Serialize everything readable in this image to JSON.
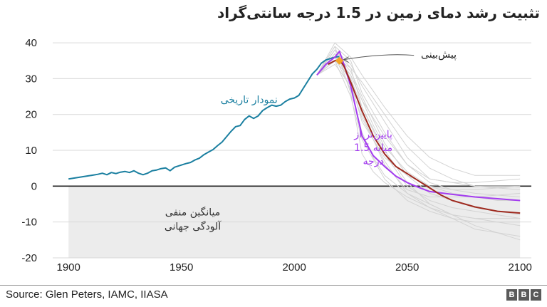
{
  "title": "تثبیت رشد دمای زمین در 1.5 درجه سانتی‌گراد",
  "source": "Source:  Glen Peters, IAMC, IIASA",
  "logo": [
    "B",
    "B",
    "C"
  ],
  "colors": {
    "historical": "#1a7fa0",
    "forecast_marker": "#f5a623",
    "below_15": "#a43cf0",
    "central": "#9e2a1f",
    "scenarios": "#d3d3d3",
    "negative_region": "#ececec",
    "grid": "#d9d9d9",
    "zero_line": "#222222"
  },
  "chart_data": {
    "type": "line",
    "title": "تثبیت رشد دمای زمین در 1.5 درجه سانتی‌گراد",
    "xlim": [
      1893,
      2105
    ],
    "ylim": [
      -20,
      42
    ],
    "x_ticks": [
      1900,
      1950,
      2000,
      2050,
      2100
    ],
    "x_tick_labels": [
      "1900",
      "1950",
      "2000",
      "2050",
      "2100"
    ],
    "y_ticks": [
      -20,
      -10,
      0,
      10,
      20,
      30,
      40
    ],
    "y_tick_labels": [
      "-20",
      "-10",
      "0",
      "10",
      "20",
      "30",
      "40"
    ],
    "grid": true,
    "negative_region": {
      "x": [
        1900,
        2100
      ],
      "y": [
        -20,
        0
      ]
    },
    "annotations": {
      "historical": "نمودار تاریخی",
      "forecast": "پیش‌بینی",
      "below_15": [
        "پایین‌تر از",
        "میانه 1.5",
        "درجه"
      ],
      "negative": [
        "میانگین منفی",
        "آلودگی جهانی"
      ]
    },
    "series": [
      {
        "key": "historical",
        "x": [
          1900,
          1903,
          1906,
          1909,
          1911,
          1913,
          1915,
          1917,
          1919,
          1921,
          1923,
          1925,
          1927,
          1929,
          1931,
          1933,
          1935,
          1937,
          1939,
          1941,
          1943,
          1945,
          1947,
          1950,
          1952,
          1954,
          1956,
          1958,
          1960,
          1962,
          1964,
          1966,
          1968,
          1970,
          1972,
          1974,
          1976,
          1978,
          1980,
          1982,
          1984,
          1986,
          1988,
          1990,
          1992,
          1994,
          1996,
          1998,
          2000,
          2002,
          2004,
          2006,
          2008,
          2010,
          2012,
          2014,
          2016,
          2018,
          2020
        ],
        "y": [
          2,
          2.3,
          2.6,
          2.9,
          3.1,
          3.3,
          3.6,
          3.2,
          3.8,
          3.5,
          3.9,
          4.1,
          3.8,
          4.3,
          3.6,
          3.2,
          3.6,
          4.3,
          4.5,
          4.9,
          5.1,
          4.3,
          5.3,
          5.9,
          6.3,
          6.6,
          7.3,
          7.8,
          8.8,
          9.5,
          10.2,
          11.3,
          12.3,
          13.8,
          15.3,
          16.6,
          16.9,
          18.6,
          19.6,
          18.9,
          19.6,
          21.1,
          21.9,
          22.6,
          22.3,
          22.6,
          23.6,
          24.3,
          24.6,
          25.3,
          27.3,
          29.3,
          31.3,
          32.6,
          34.3,
          35.2,
          35.6,
          36,
          36.2
        ]
      },
      {
        "key": "below_15",
        "x": [
          2010,
          2014,
          2018,
          2020,
          2022,
          2025,
          2030,
          2035,
          2040,
          2045,
          2050,
          2055,
          2060,
          2070,
          2080,
          2090,
          2100
        ],
        "y": [
          31,
          34,
          36,
          37.6,
          34,
          28,
          14,
          8.5,
          5.5,
          2.8,
          1,
          -0.3,
          -1.5,
          -2.3,
          -3,
          -3.5,
          -4
        ]
      },
      {
        "key": "central",
        "x": [
          2015,
          2018,
          2020,
          2022,
          2025,
          2030,
          2035,
          2040,
          2045,
          2050,
          2055,
          2060,
          2065,
          2070,
          2080,
          2090,
          2100
        ],
        "y": [
          34,
          35,
          35.3,
          33.5,
          29,
          21,
          14,
          9,
          5.5,
          3.5,
          1.5,
          -0.5,
          -2.5,
          -4,
          -5.8,
          -7,
          -7.5
        ]
      }
    ],
    "scenarios": [
      {
        "x": [
          2010,
          2018,
          2025,
          2030,
          2035,
          2040,
          2050,
          2060,
          2070,
          2080,
          2090,
          2100
        ],
        "y": [
          31,
          37,
          31,
          24,
          17,
          11,
          4,
          0,
          -2,
          -3,
          -4,
          -4
        ]
      },
      {
        "x": [
          2010,
          2018,
          2025,
          2030,
          2040,
          2050,
          2060,
          2070,
          2080,
          2100
        ],
        "y": [
          31,
          38,
          34,
          28,
          18,
          8,
          2,
          1,
          1,
          2
        ]
      },
      {
        "x": [
          2010,
          2018,
          2025,
          2030,
          2035,
          2040,
          2050,
          2060,
          2070,
          2080,
          2090,
          2100
        ],
        "y": [
          31,
          39,
          26,
          9,
          4,
          1,
          -3,
          -6,
          -8,
          -9,
          -10,
          -11
        ]
      },
      {
        "x": [
          2010,
          2018,
          2025,
          2030,
          2035,
          2040,
          2050,
          2060,
          2070,
          2080,
          2090,
          2100
        ],
        "y": [
          31,
          36,
          27,
          15,
          8,
          3,
          -2,
          -5,
          -8,
          -11,
          -13,
          -15
        ]
      },
      {
        "x": [
          2010,
          2018,
          2025,
          2030,
          2040,
          2050,
          2060,
          2070,
          2080,
          2090,
          2100
        ],
        "y": [
          31,
          40,
          36,
          31,
          22,
          14,
          8,
          5,
          3,
          3,
          3
        ]
      },
      {
        "x": [
          2010,
          2018,
          2025,
          2030,
          2040,
          2050,
          2060,
          2070,
          2080,
          2090,
          2100
        ],
        "y": [
          31,
          35,
          25,
          13,
          2,
          -4,
          -7,
          -9,
          -10,
          -10,
          -10
        ]
      },
      {
        "x": [
          2010,
          2018,
          2025,
          2030,
          2040,
          2050,
          2060,
          2070,
          2080,
          2090,
          2100
        ],
        "y": [
          31,
          37,
          32,
          25,
          12,
          3,
          -2,
          -4,
          -6,
          -7,
          -8
        ]
      },
      {
        "x": [
          2010,
          2018,
          2025,
          2030,
          2040,
          2050,
          2060,
          2070,
          2080,
          2100
        ],
        "y": [
          31,
          38,
          30,
          20,
          6,
          -1,
          -3,
          -3,
          -3,
          -2
        ]
      },
      {
        "x": [
          2010,
          2018,
          2025,
          2030,
          2040,
          2050,
          2060,
          2070,
          2080,
          2100
        ],
        "y": [
          31,
          36,
          33,
          29,
          20,
          11,
          5,
          2,
          0,
          -1
        ]
      },
      {
        "x": [
          2010,
          2018,
          2025,
          2030,
          2040,
          2050,
          2060,
          2070,
          2080,
          2090,
          2100
        ],
        "y": [
          31,
          34,
          28,
          19,
          7,
          -2,
          -6,
          -9,
          -12,
          -13,
          -14
        ]
      },
      {
        "x": [
          2010,
          2018,
          2025,
          2030,
          2040,
          2050,
          2060,
          2070,
          2080,
          2100
        ],
        "y": [
          31,
          37,
          29,
          18,
          8,
          3,
          0,
          -1,
          -2,
          -3
        ]
      },
      {
        "x": [
          2010,
          2018,
          2025,
          2030,
          2040,
          2050,
          2060,
          2070,
          2080,
          2100
        ],
        "y": [
          31,
          39,
          35,
          26,
          15,
          6,
          1,
          -1,
          -1,
          0
        ]
      },
      {
        "x": [
          2010,
          2018,
          2025,
          2030,
          2040,
          2050,
          2060,
          2070,
          2080,
          2090,
          2100
        ],
        "y": [
          31,
          35,
          30,
          22,
          10,
          1,
          -5,
          -8,
          -9,
          -9,
          -9
        ]
      },
      {
        "x": [
          2010,
          2018,
          2025,
          2030,
          2040,
          2050,
          2060,
          2070,
          2080,
          2100
        ],
        "y": [
          31,
          36,
          31,
          24,
          14,
          6,
          2,
          1,
          0,
          0
        ]
      },
      {
        "x": [
          2010,
          2018,
          2025,
          2030,
          2040,
          2050,
          2060,
          2070,
          2080,
          2090,
          2100
        ],
        "y": [
          31,
          38,
          33,
          22,
          9,
          0,
          -4,
          -6,
          -7,
          -8,
          -9
        ]
      }
    ],
    "forecast_point": {
      "x": 2020,
      "y": 35
    }
  }
}
